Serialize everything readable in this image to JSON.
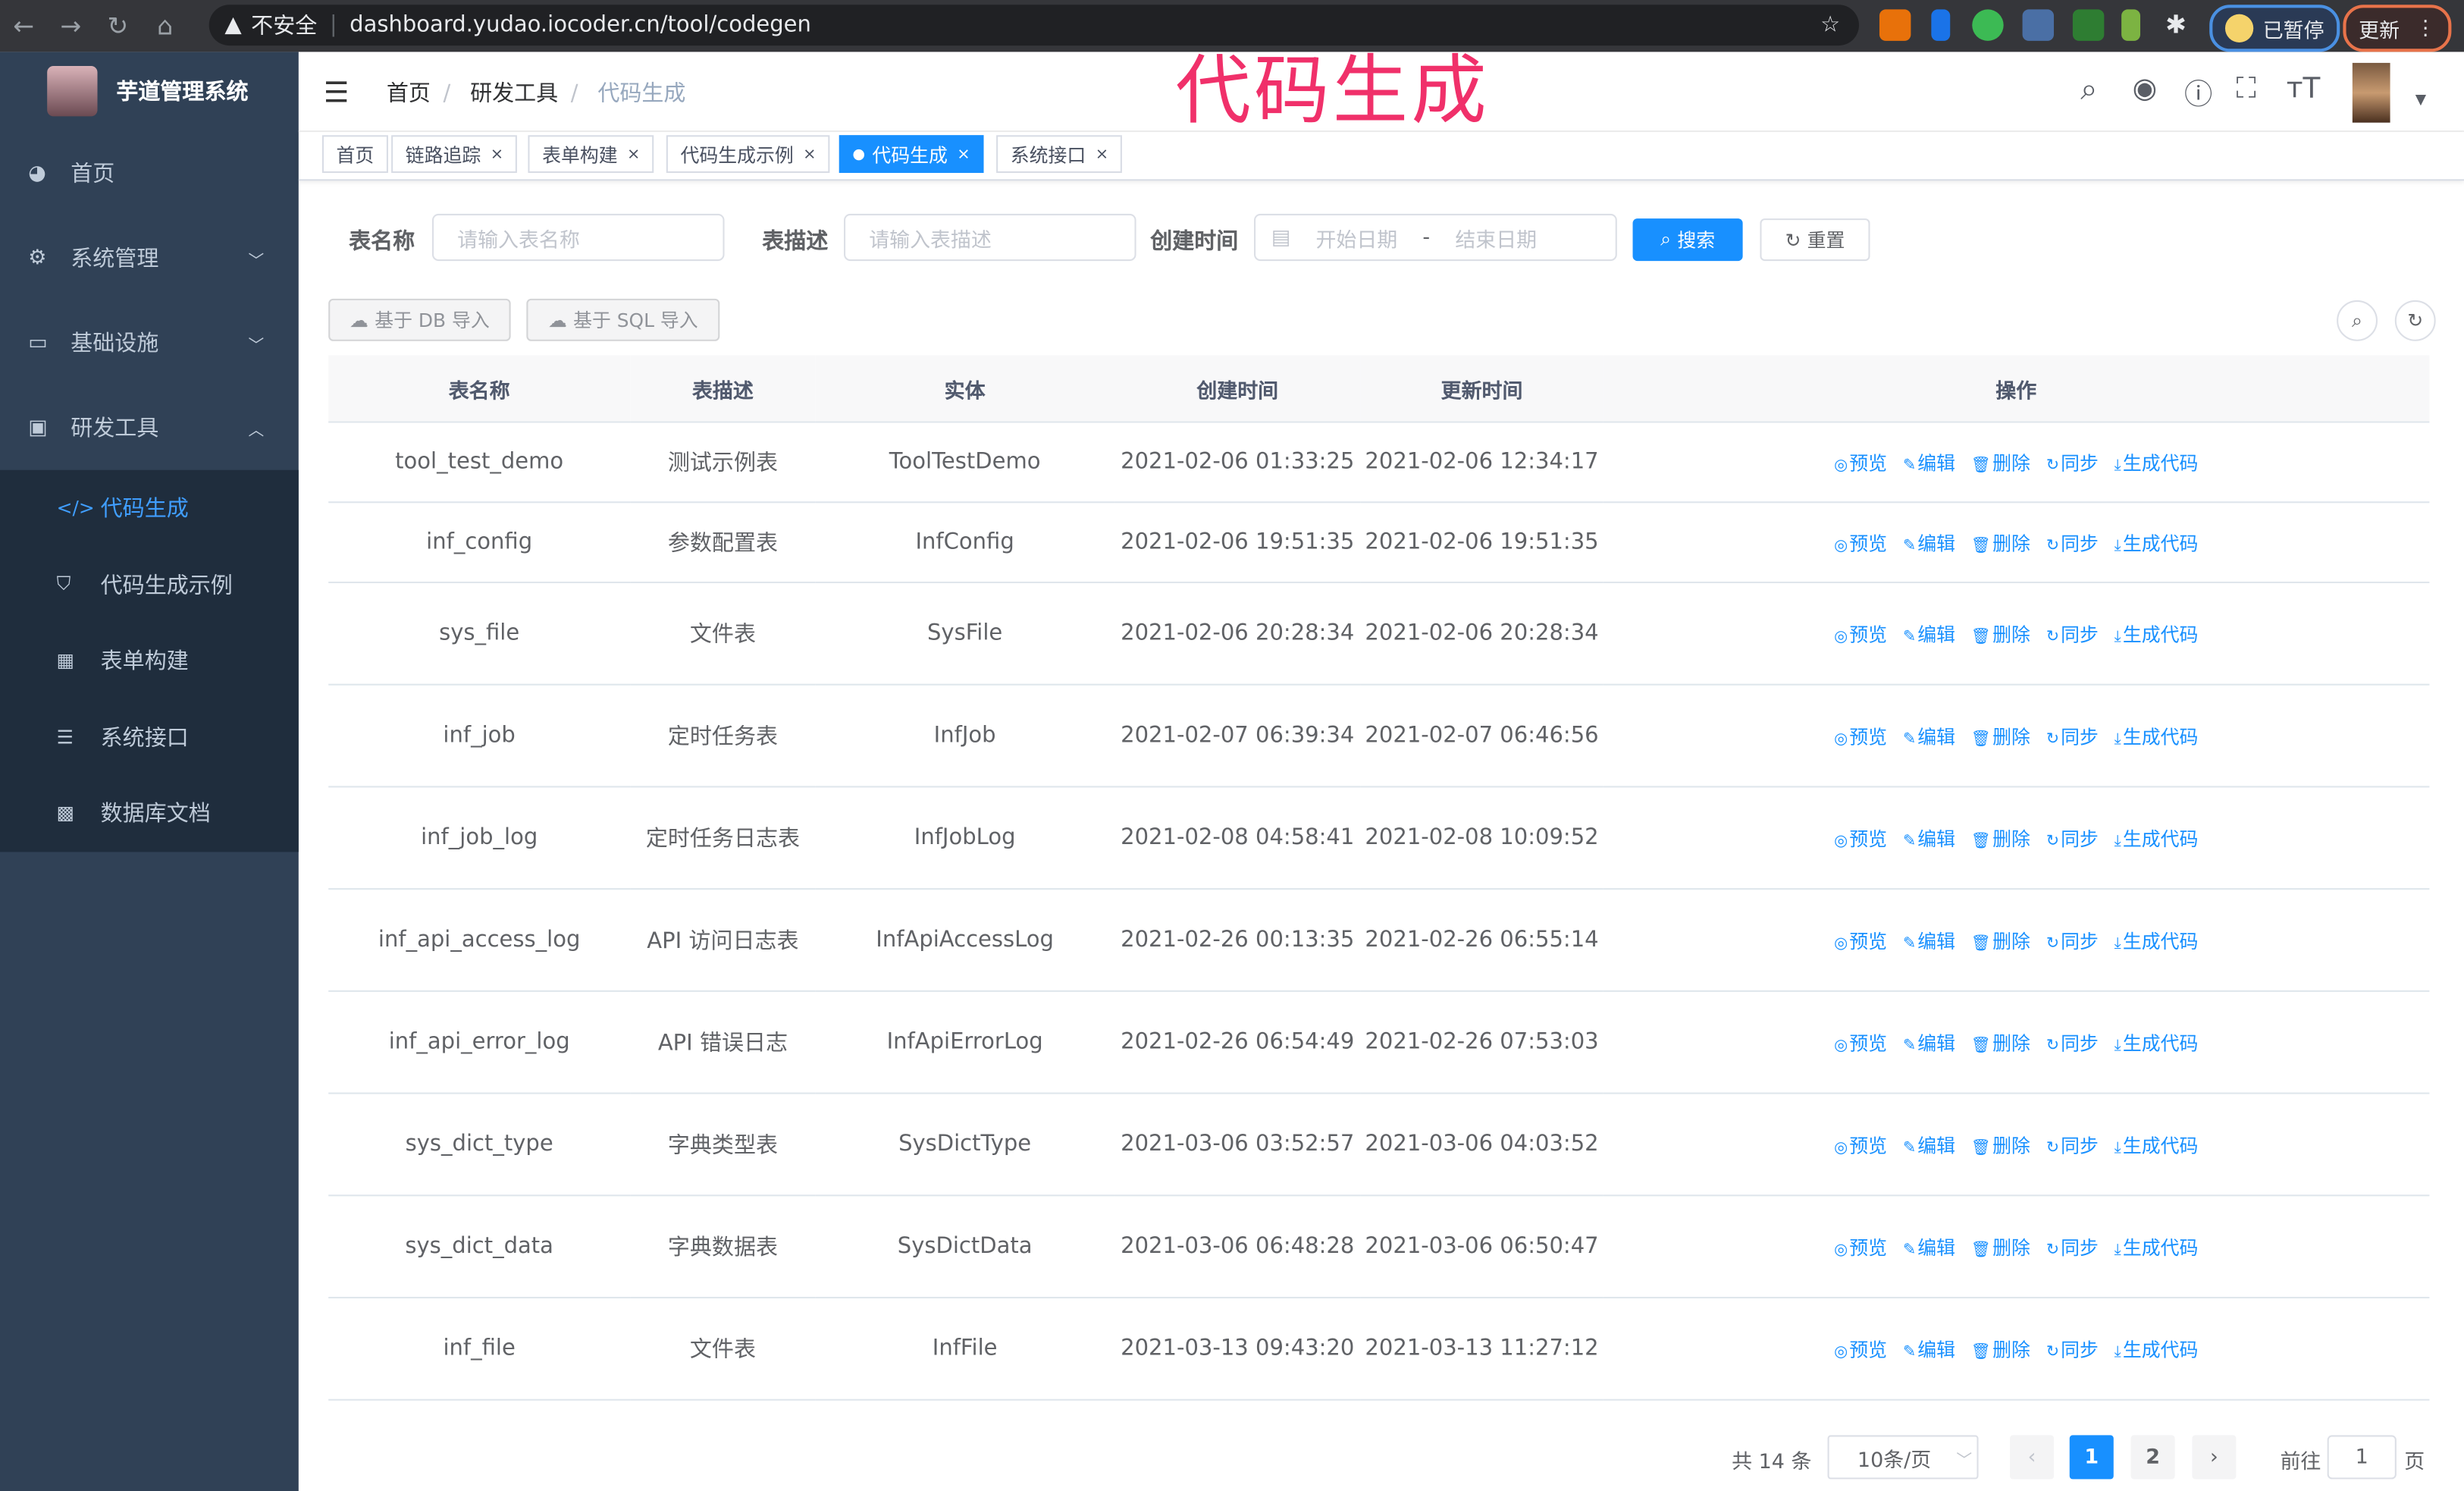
{
  "browser": {
    "insecure_label": "不安全",
    "url": "dashboard.yudao.iocoder.cn/tool/codegen",
    "paused_label": "已暂停",
    "update_label": "更新"
  },
  "overlay_title": "代码生成",
  "app": {
    "title": "芋道管理系统"
  },
  "sidebar": {
    "items": [
      {
        "label": "首页",
        "icon": "dashboard-icon"
      },
      {
        "label": "系统管理",
        "icon": "gear-icon"
      },
      {
        "label": "基础设施",
        "icon": "monitor-icon"
      },
      {
        "label": "研发工具",
        "icon": "toolbox-icon"
      }
    ],
    "subitems": [
      {
        "label": "代码生成",
        "icon": "code-icon",
        "active": true
      },
      {
        "label": "代码生成示例",
        "icon": "shield-icon"
      },
      {
        "label": "表单构建",
        "icon": "form-icon"
      },
      {
        "label": "系统接口",
        "icon": "sliders-icon"
      },
      {
        "label": "数据库文档",
        "icon": "table-icon"
      }
    ]
  },
  "breadcrumb": [
    "首页",
    "研发工具",
    "代码生成"
  ],
  "tags": [
    {
      "label": "首页"
    },
    {
      "label": "链路追踪"
    },
    {
      "label": "表单构建"
    },
    {
      "label": "代码生成示例"
    },
    {
      "label": "代码生成",
      "active": true
    },
    {
      "label": "系统接口"
    }
  ],
  "filters": {
    "name_label": "表名称",
    "name_placeholder": "请输入表名称",
    "desc_label": "表描述",
    "desc_placeholder": "请输入表描述",
    "time_label": "创建时间",
    "start_placeholder": "开始日期",
    "range_sep": "-",
    "end_placeholder": "结束日期",
    "search": "搜索",
    "reset": "重置"
  },
  "toolbar": {
    "import_db": "基于 DB 导入",
    "import_sql": "基于 SQL 导入"
  },
  "table": {
    "columns": [
      "表名称",
      "表描述",
      "实体",
      "创建时间",
      "更新时间",
      "操作"
    ],
    "actions": [
      "预览",
      "编辑",
      "删除",
      "同步",
      "生成代码"
    ],
    "rows": [
      [
        "tool_test_demo",
        "测试示例表",
        "ToolTestDemo",
        "2021-02-06 01:33:25",
        "2021-02-06 12:34:17"
      ],
      [
        "inf_config",
        "参数配置表",
        "InfConfig",
        "2021-02-06 19:51:35",
        "2021-02-06 19:51:35"
      ],
      [
        "sys_file",
        "文件表",
        "SysFile",
        "2021-02-06 20:28:34",
        "2021-02-06 20:28:34"
      ],
      [
        "inf_job",
        "定时任务表",
        "InfJob",
        "2021-02-07 06:39:34",
        "2021-02-07 06:46:56"
      ],
      [
        "inf_job_log",
        "定时任务日志表",
        "InfJobLog",
        "2021-02-08 04:58:41",
        "2021-02-08 10:09:52"
      ],
      [
        "inf_api_access_log",
        "API 访问日志表",
        "InfApiAccessLog",
        "2021-02-26 00:13:35",
        "2021-02-26 06:55:14"
      ],
      [
        "inf_api_error_log",
        "API 错误日志",
        "InfApiErrorLog",
        "2021-02-26 06:54:49",
        "2021-02-26 07:53:03"
      ],
      [
        "sys_dict_type",
        "字典类型表",
        "SysDictType",
        "2021-03-06 03:52:57",
        "2021-03-06 04:03:52"
      ],
      [
        "sys_dict_data",
        "字典数据表",
        "SysDictData",
        "2021-03-06 06:48:28",
        "2021-03-06 06:50:47"
      ],
      [
        "inf_file",
        "文件表",
        "InfFile",
        "2021-03-13 09:43:20",
        "2021-03-13 11:27:12"
      ]
    ]
  },
  "pagination": {
    "total": "共 14 条",
    "page_size": "10条/页",
    "pages": [
      "1",
      "2"
    ],
    "current": "1",
    "goto_label": "前往",
    "goto_value": "1",
    "page_unit": "页"
  },
  "colors": {
    "accent": "#1890ff",
    "sidebar": "#304156",
    "overlay": "#f0306a"
  }
}
